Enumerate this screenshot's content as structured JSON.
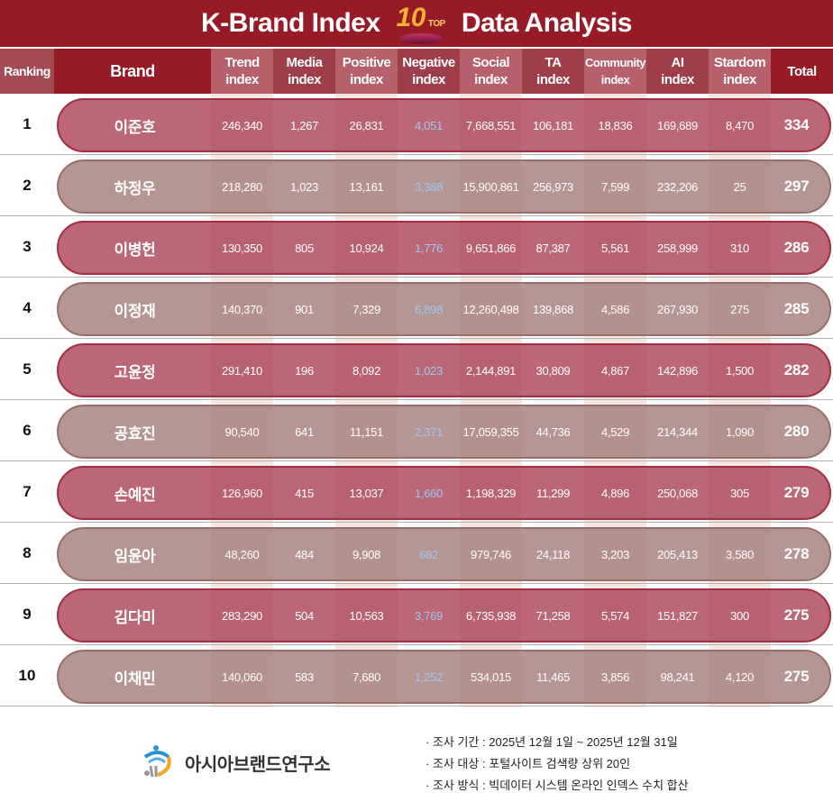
{
  "header": {
    "title_left": "K-Brand Index",
    "badge_number": "10",
    "badge_text": "TOP",
    "title_right": "Data Analysis"
  },
  "columns": [
    "Ranking",
    "Brand",
    "Trend index",
    "Media index",
    "Positive index",
    "Negative index",
    "Social index",
    "TA index",
    "Community index",
    "AI index",
    "Stardom index",
    "Total"
  ],
  "colors": {
    "header_bg": "#971b27",
    "odd_pill": "#b5606e",
    "even_pill": "#b59490",
    "negative_text": "#9cc8f4"
  },
  "rows": [
    {
      "rank": "1",
      "brand": "이준호",
      "trend": "246,340",
      "media": "1,267",
      "positive": "26,831",
      "negative": "4,051",
      "social": "7,668,551",
      "ta": "106,181",
      "community": "18,836",
      "ai": "169,689",
      "stardom": "8,470",
      "total": "334"
    },
    {
      "rank": "2",
      "brand": "하정우",
      "trend": "218,280",
      "media": "1,023",
      "positive": "13,161",
      "negative": "3,368",
      "social": "15,900,861",
      "ta": "256,973",
      "community": "7,599",
      "ai": "232,206",
      "stardom": "25",
      "total": "297"
    },
    {
      "rank": "3",
      "brand": "이병헌",
      "trend": "130,350",
      "media": "805",
      "positive": "10,924",
      "negative": "1,776",
      "social": "9,651,866",
      "ta": "87,387",
      "community": "5,561",
      "ai": "258,999",
      "stardom": "310",
      "total": "286"
    },
    {
      "rank": "4",
      "brand": "이정재",
      "trend": "140,370",
      "media": "901",
      "positive": "7,329",
      "negative": "6,898",
      "social": "12,260,498",
      "ta": "139,868",
      "community": "4,586",
      "ai": "267,930",
      "stardom": "275",
      "total": "285"
    },
    {
      "rank": "5",
      "brand": "고윤정",
      "trend": "291,410",
      "media": "196",
      "positive": "8,092",
      "negative": "1,023",
      "social": "2,144,891",
      "ta": "30,809",
      "community": "4,867",
      "ai": "142,896",
      "stardom": "1,500",
      "total": "282"
    },
    {
      "rank": "6",
      "brand": "공효진",
      "trend": "90,540",
      "media": "641",
      "positive": "11,151",
      "negative": "2,371",
      "social": "17,059,355",
      "ta": "44,736",
      "community": "4,529",
      "ai": "214,344",
      "stardom": "1,090",
      "total": "280"
    },
    {
      "rank": "7",
      "brand": "손예진",
      "trend": "126,960",
      "media": "415",
      "positive": "13,037",
      "negative": "1,660",
      "social": "1,198,329",
      "ta": "11,299",
      "community": "4,896",
      "ai": "250,068",
      "stardom": "305",
      "total": "279"
    },
    {
      "rank": "8",
      "brand": "임윤아",
      "trend": "48,260",
      "media": "484",
      "positive": "9,908",
      "negative": "682",
      "social": "979,746",
      "ta": "24,118",
      "community": "3,203",
      "ai": "205,413",
      "stardom": "3,580",
      "total": "278"
    },
    {
      "rank": "9",
      "brand": "김다미",
      "trend": "283,290",
      "media": "504",
      "positive": "10,563",
      "negative": "3,769",
      "social": "6,735,938",
      "ta": "71,258",
      "community": "5,574",
      "ai": "151,827",
      "stardom": "300",
      "total": "275"
    },
    {
      "rank": "10",
      "brand": "이채민",
      "trend": "140,060",
      "media": "583",
      "positive": "7,680",
      "negative": "1,252",
      "social": "534,015",
      "ta": "11,465",
      "community": "3,856",
      "ai": "98,241",
      "stardom": "4,120",
      "total": "275"
    }
  ],
  "footer": {
    "logo_text": "아시아브랜드연구소",
    "notes": [
      "· 조사 기간 : 2025년 12월 1일 ~ 2025년 12월 31일",
      "· 조사 대상 : 포털사이트 검색량 상위 20인",
      "· 조사 방식 : 빅데이터 시스템 온라인 인덱스 수치 합산"
    ]
  }
}
